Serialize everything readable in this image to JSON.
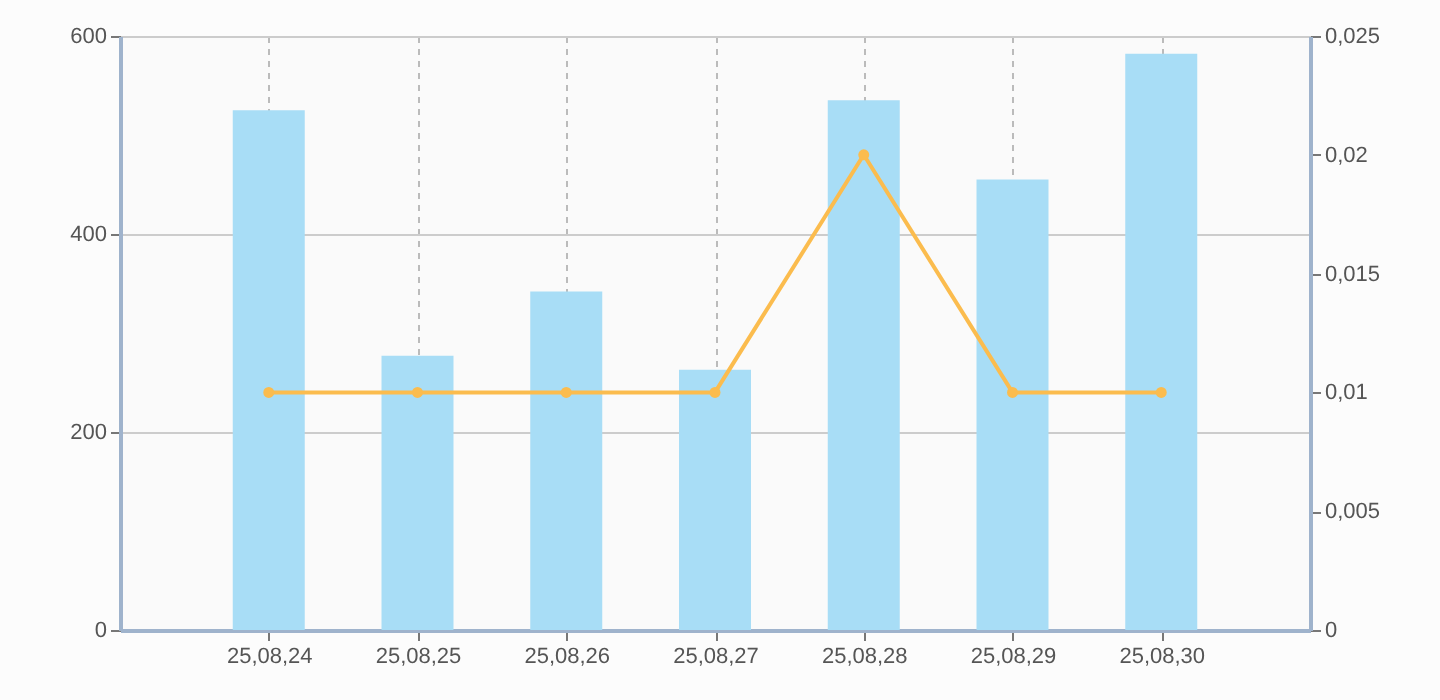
{
  "chart_data": {
    "type": "bar",
    "categories": [
      "25,08,24",
      "25,08,25",
      "25,08,26",
      "25,08,27",
      "25,08,28",
      "25,08,29",
      "25,08,30"
    ],
    "series": [
      {
        "color": "#a8ddf6",
        "values": [
          525,
          277,
          342,
          263,
          535,
          455,
          582
        ]
      },
      {
        "type": "line",
        "axis": "y2",
        "color": "#fbbc4e",
        "values": [
          0.01,
          0.01,
          0.01,
          0.01,
          0.02,
          0.01,
          0.01
        ]
      }
    ],
    "ylim": [
      0,
      600
    ],
    "yticks": [
      0,
      200,
      400,
      600
    ],
    "y2lim": [
      0,
      0.025
    ],
    "y2ticks": [
      {
        "value": 0,
        "label": "0"
      },
      {
        "value": 0.005,
        "label": "0,005"
      },
      {
        "value": 0.01,
        "label": "0,01"
      },
      {
        "value": 0.015,
        "label": "0,015"
      },
      {
        "value": 0.02,
        "label": "0,02"
      },
      {
        "value": 0.025,
        "label": "0,025"
      }
    ],
    "grid": true,
    "marker": "circle",
    "line_style": "solid"
  }
}
